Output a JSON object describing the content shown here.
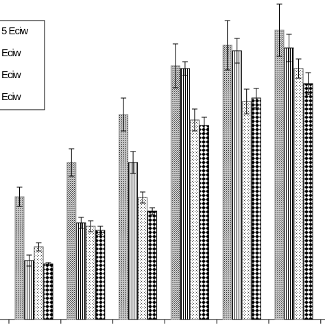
{
  "chart_data": {
    "type": "bar",
    "categories": [
      null,
      null,
      null,
      null,
      null,
      null
    ],
    "ylim": [
      0,
      466
    ],
    "series": [
      {
        "name": "5 Eciw",
        "color": "#888888",
        "pattern": "dense-dots",
        "values": [
          179,
          229,
          299,
          370,
          400,
          422
        ],
        "errors": [
          14,
          20,
          24,
          32,
          36,
          38
        ]
      },
      {
        "name": "Eciw",
        "color": "#000000",
        "pattern": "vertical-lines",
        "values": [
          86,
          141,
          229,
          366,
          392,
          396
        ],
        "errors": [
          8,
          8,
          16,
          10,
          18,
          20
        ]
      },
      {
        "name": "Eciw",
        "color": "#555555",
        "pattern": "light-dots",
        "values": [
          106,
          136,
          178,
          291,
          318,
          366
        ],
        "errors": [
          6,
          8,
          8,
          16,
          18,
          14
        ]
      },
      {
        "name": "Eciw",
        "color": "#000000",
        "pattern": "diamonds",
        "values": [
          81,
          130,
          158,
          283,
          323,
          344
        ],
        "errors": [
          2,
          6,
          5,
          12,
          14,
          16
        ]
      }
    ]
  }
}
